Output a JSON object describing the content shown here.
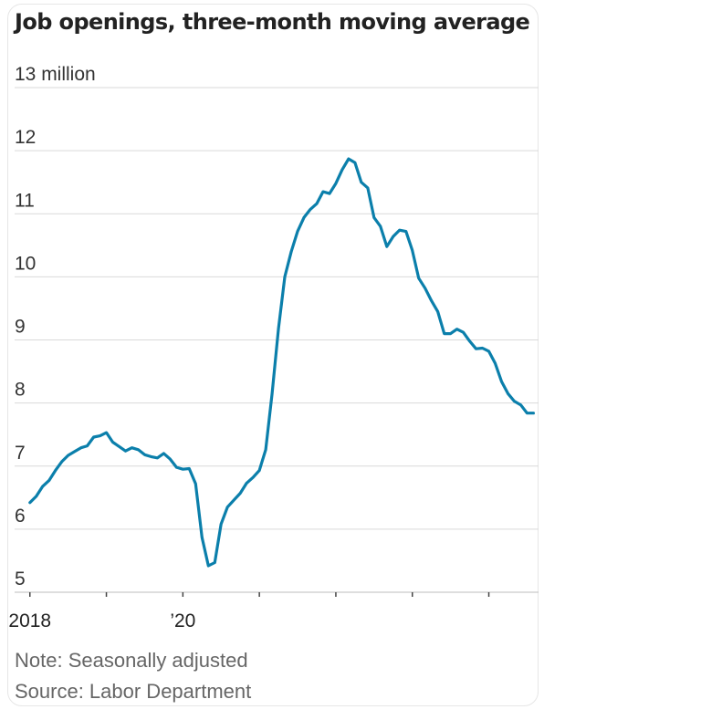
{
  "chart_data": {
    "type": "line",
    "title": "Job openings, three-month moving average",
    "unit_label": "13 million",
    "ylabel": "",
    "xlabel": "",
    "ylim": [
      5,
      13
    ],
    "y_ticks": [
      5,
      6,
      7,
      8,
      9,
      10,
      11,
      12,
      13
    ],
    "y_tick_labels": [
      "5",
      "6",
      "7",
      "8",
      "9",
      "10",
      "11",
      "12",
      ""
    ],
    "x_ticks": [
      2018,
      2019,
      2020,
      2021,
      2022,
      2023,
      2024
    ],
    "x_tick_labels": [
      {
        "x": 2018,
        "label": "2018"
      },
      {
        "x": 2020,
        "label": "’20"
      }
    ],
    "xlim": [
      2017.8,
      2024.65
    ],
    "grid": true,
    "color": "#0b7fab",
    "series": [
      {
        "name": "Job openings",
        "x": [
          2018.0,
          2018.083,
          2018.167,
          2018.25,
          2018.333,
          2018.417,
          2018.5,
          2018.583,
          2018.667,
          2018.75,
          2018.833,
          2018.917,
          2019.0,
          2019.083,
          2019.167,
          2019.25,
          2019.333,
          2019.417,
          2019.5,
          2019.583,
          2019.667,
          2019.75,
          2019.833,
          2019.917,
          2020.0,
          2020.083,
          2020.167,
          2020.25,
          2020.333,
          2020.417,
          2020.5,
          2020.583,
          2020.667,
          2020.75,
          2020.833,
          2020.917,
          2021.0,
          2021.083,
          2021.167,
          2021.25,
          2021.333,
          2021.417,
          2021.5,
          2021.583,
          2021.667,
          2021.75,
          2021.833,
          2021.917,
          2022.0,
          2022.083,
          2022.167,
          2022.25,
          2022.333,
          2022.417,
          2022.5,
          2022.583,
          2022.667,
          2022.75,
          2022.833,
          2022.917,
          2023.0,
          2023.083,
          2023.167,
          2023.25,
          2023.333,
          2023.417,
          2023.5,
          2023.583,
          2023.667,
          2023.75,
          2023.833,
          2023.917,
          2024.0,
          2024.083,
          2024.167,
          2024.25,
          2024.333,
          2024.417,
          2024.5,
          2024.583
        ],
        "values": [
          6.42,
          6.52,
          6.68,
          6.77,
          6.93,
          7.07,
          7.17,
          7.23,
          7.29,
          7.32,
          7.46,
          7.48,
          7.53,
          7.38,
          7.31,
          7.24,
          7.29,
          7.26,
          7.18,
          7.15,
          7.13,
          7.2,
          7.11,
          6.98,
          6.95,
          6.96,
          6.72,
          5.87,
          5.42,
          5.47,
          6.08,
          6.35,
          6.46,
          6.57,
          6.73,
          6.82,
          6.93,
          7.26,
          8.15,
          9.18,
          10.0,
          10.4,
          10.72,
          10.94,
          11.07,
          11.16,
          11.35,
          11.32,
          11.48,
          11.7,
          11.87,
          11.81,
          11.5,
          11.41,
          10.94,
          10.8,
          10.48,
          10.64,
          10.74,
          10.72,
          10.42,
          9.98,
          9.82,
          9.62,
          9.45,
          9.1,
          9.1,
          9.17,
          9.12,
          8.98,
          8.86,
          8.87,
          8.82,
          8.63,
          8.34,
          8.15,
          8.03,
          7.97,
          7.84,
          7.84
        ]
      }
    ]
  },
  "note": "Note: Seasonally adjusted",
  "source": "Source: Labor Department"
}
